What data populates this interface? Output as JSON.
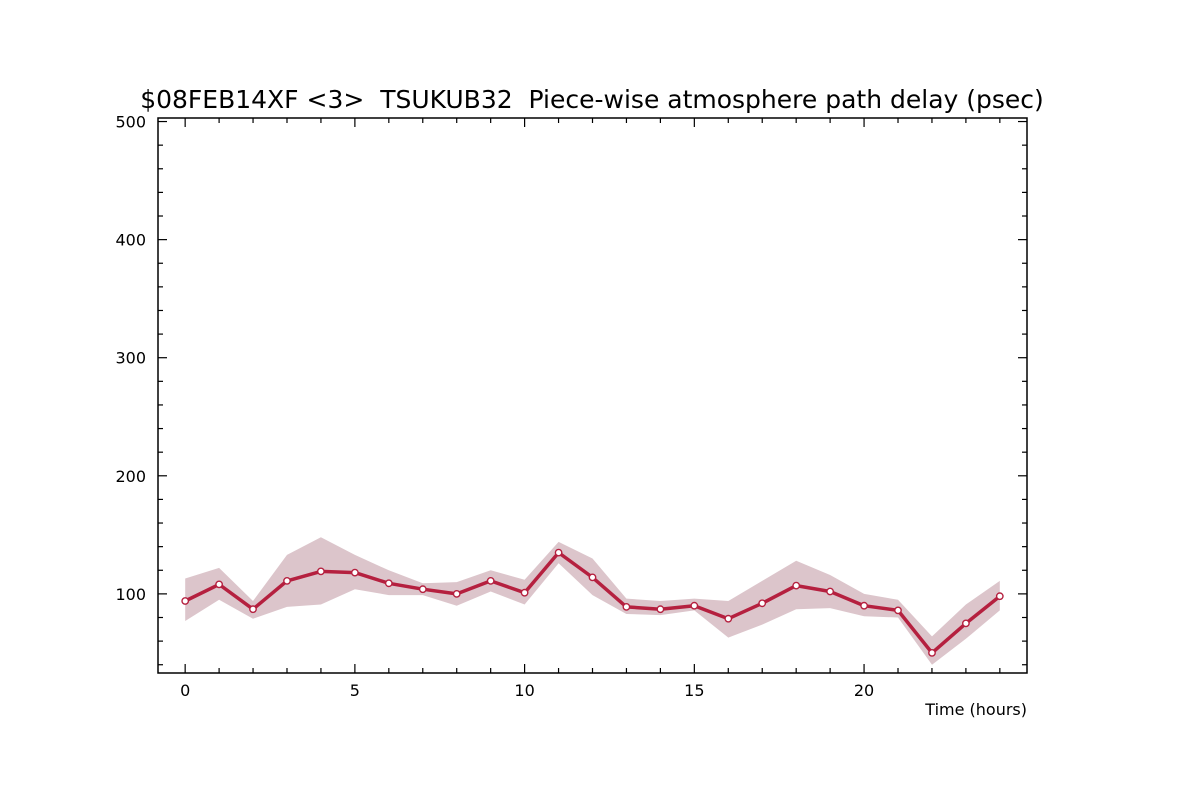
{
  "chart_data": {
    "type": "line",
    "title": "$08FEB14XF <3>  TSUKUB32  Piece-wise atmosphere path delay (psec)",
    "xlabel": "Time (hours)",
    "ylabel": "",
    "xlim": [
      -0.8,
      24.8
    ],
    "ylim": [
      33,
      503
    ],
    "x_major_ticks": [
      0,
      5,
      10,
      15,
      20
    ],
    "x_tick_labels": [
      "0",
      "5",
      "10",
      "15",
      "20"
    ],
    "x_minor_step": 1,
    "y_major_ticks": [
      100,
      200,
      300,
      400,
      500
    ],
    "y_tick_labels": [
      "100",
      "200",
      "300",
      "400",
      "500"
    ],
    "y_minor_step": 20,
    "grid": false,
    "colors": {
      "line": "#b5203f",
      "band": "#dcc5cb",
      "marker_fill": "#ffffff"
    },
    "series": [
      {
        "x": [
          0,
          1,
          2,
          3,
          4,
          5,
          6,
          7,
          8,
          9,
          10,
          11,
          12,
          13,
          14,
          15,
          16,
          17,
          18,
          19,
          20,
          21,
          22,
          23,
          24
        ],
        "values": [
          94,
          108,
          87,
          111,
          119,
          118,
          109,
          104,
          100,
          111,
          101,
          135,
          114,
          89,
          87,
          90,
          79,
          92,
          107,
          102,
          90,
          86,
          50,
          75,
          98
        ],
        "upper": [
          113,
          122,
          94,
          133,
          148,
          133,
          120,
          109,
          110,
          120,
          112,
          144,
          130,
          96,
          94,
          96,
          94,
          111,
          128,
          116,
          100,
          95,
          64,
          91,
          111
        ],
        "lower": [
          77,
          95,
          79,
          89,
          91,
          104,
          99,
          99,
          90,
          102,
          91,
          126,
          99,
          83,
          82,
          86,
          63,
          74,
          87,
          88,
          81,
          80,
          40,
          62,
          86
        ]
      }
    ]
  }
}
